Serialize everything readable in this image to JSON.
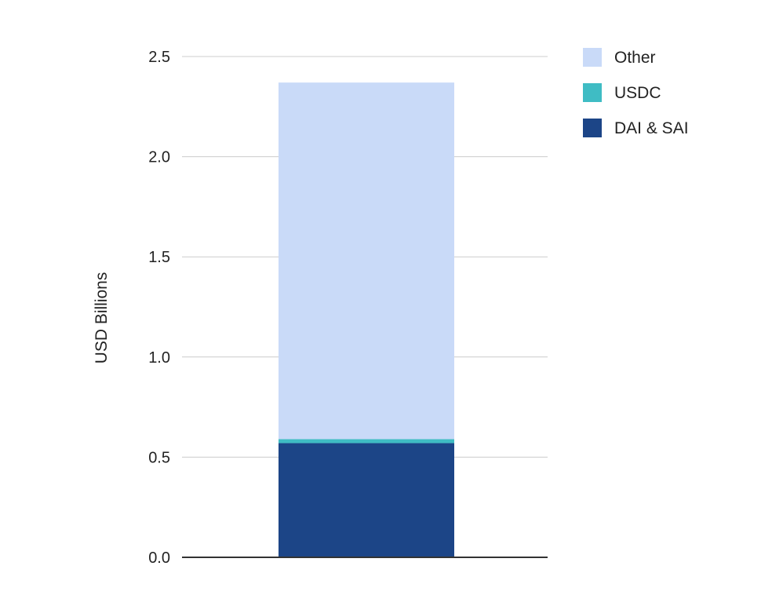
{
  "chart_data": {
    "type": "bar",
    "stacked": true,
    "categories": [
      ""
    ],
    "series": [
      {
        "name": "DAI & SAI",
        "values": [
          0.57
        ],
        "color": "#1c4587"
      },
      {
        "name": "USDC",
        "values": [
          0.02
        ],
        "color": "#3fbcc4"
      },
      {
        "name": "Other",
        "values": [
          1.78
        ],
        "color": "#c9daf8"
      }
    ],
    "legend_order": [
      "Other",
      "USDC",
      "DAI & SAI"
    ],
    "legend_position": "right",
    "ylabel": "USD Billions",
    "xlabel": "",
    "title": "",
    "ylim": [
      0,
      2.5
    ],
    "yticks": [
      "0.0",
      "0.5",
      "1.0",
      "1.5",
      "2.0",
      "2.5"
    ],
    "grid": true
  }
}
